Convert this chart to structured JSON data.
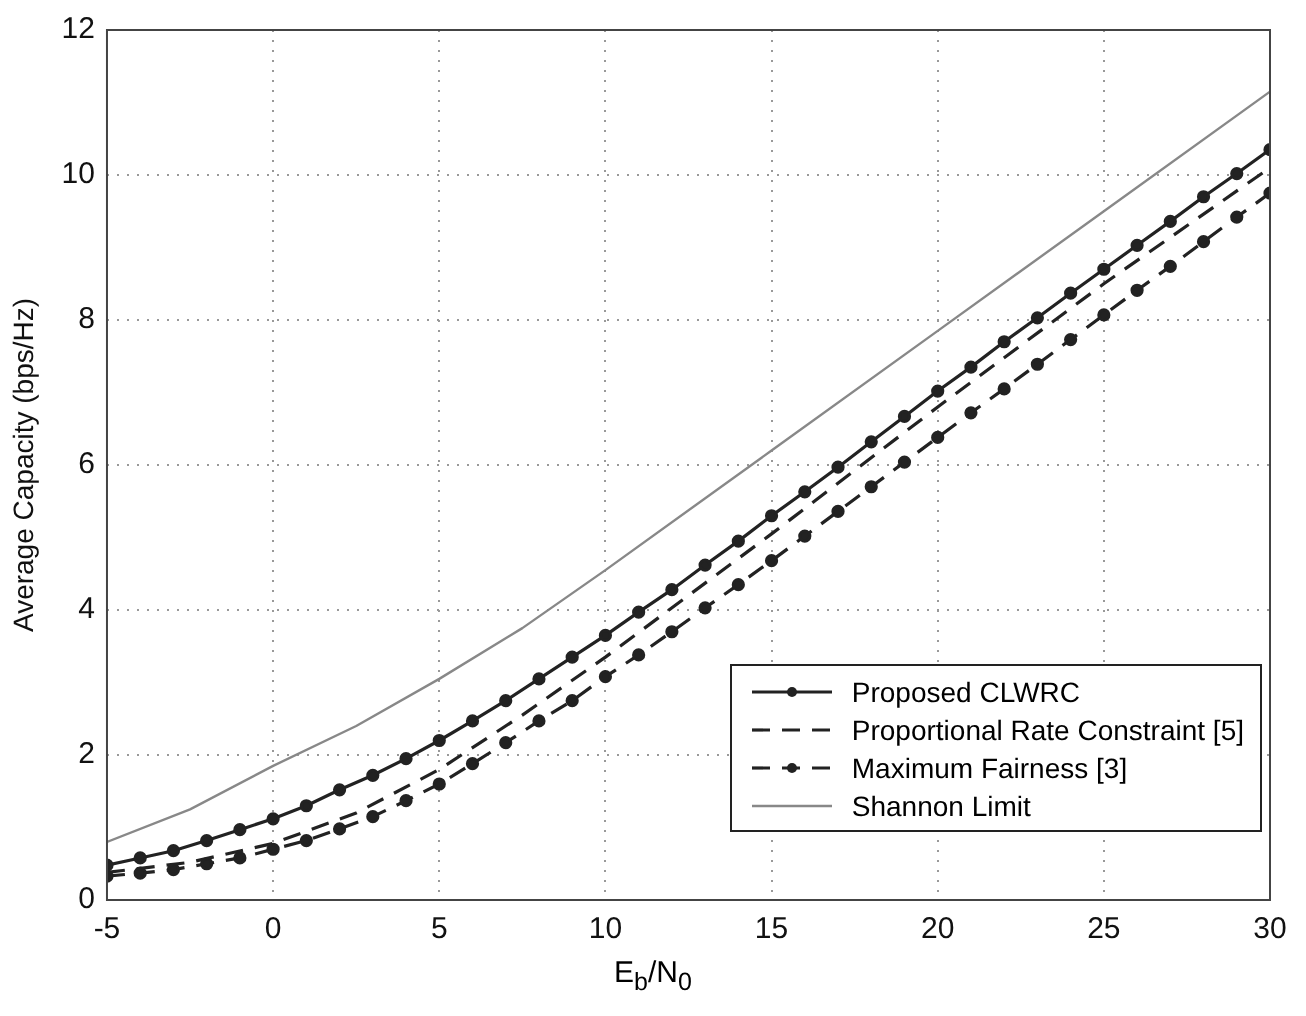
{
  "chart_data": {
    "type": "line",
    "xlabel": "E$_{b}$/N$_{0}$",
    "ylabel": "Average Capacity (bps/Hz)",
    "xlim": [
      -5,
      30
    ],
    "xticks": [
      -5,
      0,
      5,
      10,
      15,
      20,
      25,
      30
    ],
    "ylim": [
      0,
      12
    ],
    "yticks": [
      0,
      2,
      4,
      6,
      8,
      10,
      12
    ],
    "grid": true,
    "legend": "bottom right",
    "series": [
      {
        "name": "Proposed CLWRC",
        "color": "#222222",
        "marker": "circle",
        "line_style": "solid",
        "x": [
          -5,
          -4,
          -3,
          -2,
          -1,
          0,
          1,
          2,
          3,
          4,
          5,
          6,
          7,
          8,
          9,
          10,
          11,
          12,
          13,
          14,
          15,
          16,
          17,
          18,
          19,
          20,
          21,
          22,
          23,
          24,
          25,
          26,
          27,
          28,
          29,
          30
        ],
        "values": [
          0.48,
          0.58,
          0.68,
          0.82,
          0.97,
          1.12,
          1.3,
          1.52,
          1.72,
          1.95,
          2.2,
          2.47,
          2.75,
          3.05,
          3.35,
          3.65,
          3.97,
          4.28,
          4.62,
          4.95,
          5.3,
          5.63,
          5.97,
          6.32,
          6.67,
          7.02,
          7.35,
          7.7,
          8.03,
          8.37,
          8.7,
          9.03,
          9.36,
          9.7,
          10.02,
          10.35
        ]
      },
      {
        "name": "Proportional Rate Constraint [5]",
        "color": "#222222",
        "marker": "none",
        "line_style": "dashed",
        "x": [
          -5,
          -2.5,
          0,
          2.5,
          5,
          7.5,
          10,
          15,
          20,
          25,
          30
        ],
        "values": [
          0.38,
          0.52,
          0.78,
          1.2,
          1.8,
          2.55,
          3.35,
          5.05,
          6.8,
          8.5,
          10.1
        ]
      },
      {
        "name": "Maximum Fairness [3]",
        "color": "#222222",
        "marker": "circle",
        "line_style": "dashed",
        "x": [
          -5,
          -4,
          -3,
          -2,
          -1,
          0,
          1,
          2,
          3,
          4,
          5,
          6,
          7,
          8,
          9,
          10,
          11,
          12,
          13,
          14,
          15,
          16,
          17,
          18,
          19,
          20,
          21,
          22,
          23,
          24,
          25,
          26,
          27,
          28,
          29,
          30
        ],
        "values": [
          0.33,
          0.37,
          0.42,
          0.5,
          0.58,
          0.7,
          0.82,
          0.98,
          1.15,
          1.37,
          1.6,
          1.88,
          2.17,
          2.47,
          2.75,
          3.08,
          3.38,
          3.7,
          4.03,
          4.35,
          4.68,
          5.02,
          5.36,
          5.7,
          6.04,
          6.38,
          6.72,
          7.05,
          7.39,
          7.73,
          8.07,
          8.41,
          8.74,
          9.08,
          9.42,
          9.75
        ]
      },
      {
        "name": "Shannon Limit",
        "color": "#888888",
        "marker": "none",
        "line_style": "solid",
        "x": [
          -5,
          -2.5,
          0,
          2.5,
          5,
          7.5,
          10,
          15,
          20,
          25,
          30
        ],
        "values": [
          0.8,
          1.25,
          1.85,
          2.4,
          3.05,
          3.75,
          4.55,
          6.2,
          7.85,
          9.5,
          11.15
        ]
      }
    ]
  }
}
